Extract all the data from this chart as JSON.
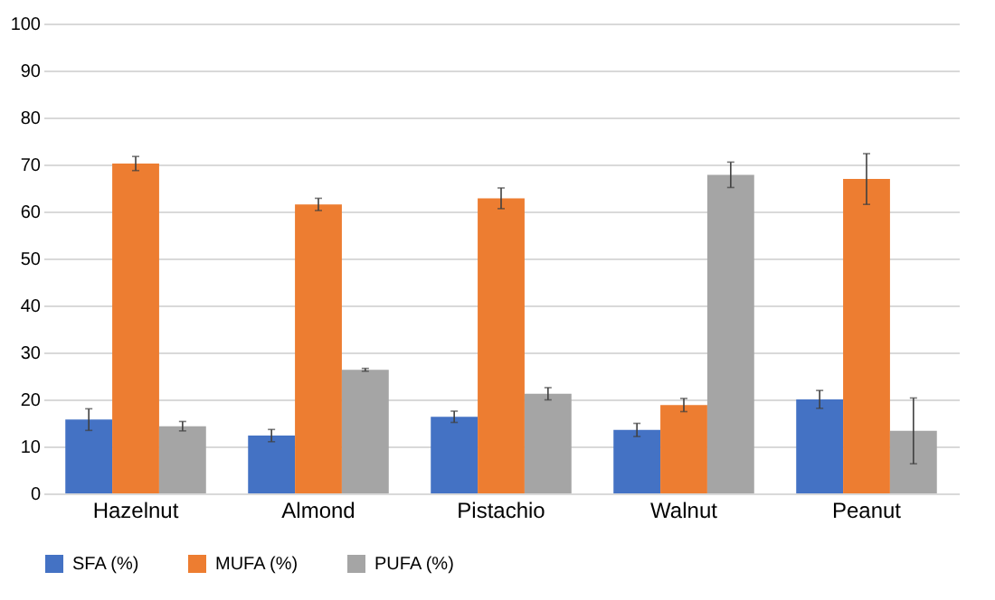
{
  "chart_data": {
    "type": "bar",
    "categories": [
      "Hazelnut",
      "Almond",
      "Pistachio",
      "Walnut",
      "Peanut"
    ],
    "series": [
      {
        "name": "SFA (%)",
        "color": "#4472c4",
        "values": [
          15.7,
          12.3,
          16.3,
          13.5,
          20.0
        ],
        "errors": [
          2.3,
          1.3,
          1.2,
          1.4,
          1.9
        ]
      },
      {
        "name": "MUFA (%)",
        "color": "#ed7d31",
        "values": [
          70.2,
          61.5,
          62.8,
          18.8,
          66.9
        ],
        "errors": [
          1.5,
          1.3,
          2.2,
          1.4,
          5.4
        ]
      },
      {
        "name": "PUFA (%)",
        "color": "#a5a5a5",
        "values": [
          14.3,
          26.3,
          21.2,
          67.8,
          13.3
        ],
        "errors": [
          1.0,
          0.3,
          1.3,
          2.7,
          7.0
        ]
      }
    ],
    "ylim": [
      0,
      100
    ],
    "yticks": [
      0,
      10,
      20,
      30,
      40,
      50,
      60,
      70,
      80,
      90,
      100
    ],
    "grid": "y",
    "legend": "bottom"
  }
}
